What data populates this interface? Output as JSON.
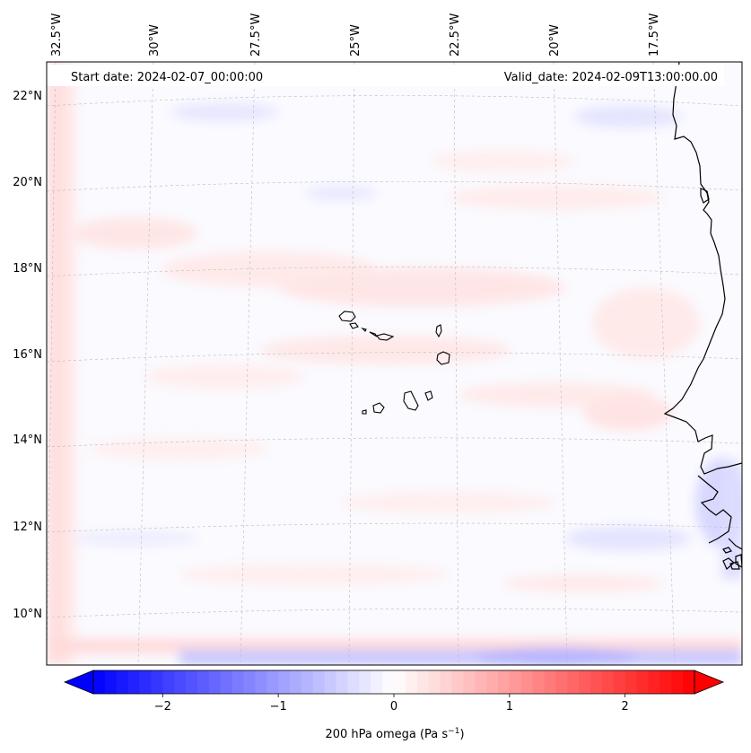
{
  "map": {
    "start_date_label": "Start date: 2024-02-07_00:00:00",
    "valid_date_label": "Valid_date: 2024-02-09T13:00:00.00",
    "lon_labels": [
      "32.5°W",
      "30°W",
      "27.5°W",
      "25°W",
      "22.5°W",
      "20°W",
      "17.5°W"
    ],
    "lat_labels": [
      "22°N",
      "20°N",
      "18°N",
      "16°N",
      "14°N",
      "12°N",
      "10°N"
    ],
    "gridlines": true,
    "coastline_color": "#000000",
    "features": [
      "Cape Verde islands",
      "West African coast"
    ]
  },
  "colorbar": {
    "label_prefix": "200 hPa omega (Pa s",
    "label_exp": "−1",
    "label_suffix": ")",
    "ticks": [
      "−2",
      "−1",
      "0",
      "1",
      "2"
    ],
    "range": [
      -2.6,
      2.6
    ],
    "colormap": "bwr",
    "extend": "both",
    "low_color": "#0000ff",
    "mid_color": "#ffffff",
    "high_color": "#ff0000"
  }
}
